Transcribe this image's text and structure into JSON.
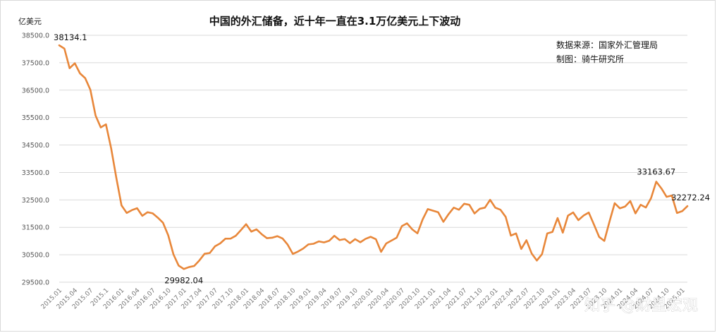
{
  "chart_data": {
    "type": "line",
    "title": "中国的外汇储备，近十年一直在3.1万亿美元上下波动",
    "ylabel": "亿美元",
    "xlabel": "",
    "source_lines": [
      "数据来源：国家外汇管理局",
      "制图：骑牛研究所"
    ],
    "watermark": "知乎 @财星宏观",
    "ylim": [
      29500,
      38500
    ],
    "yticks": [
      "29500.0",
      "30500.0",
      "31500.0",
      "32500.0",
      "33500.0",
      "34500.0",
      "35500.0",
      "36500.0",
      "37500.0",
      "38500.0"
    ],
    "ytick_values": [
      29500,
      30500,
      31500,
      32500,
      33500,
      34500,
      35500,
      36500,
      37500,
      38500
    ],
    "grid": true,
    "legend": "none",
    "line_color": "#e8873a",
    "xtick_labels": [
      "2015.01",
      "2015.04",
      "2015.07",
      "2015.1",
      "2016.01",
      "2016.04",
      "2016.07",
      "2016.10",
      "2017.01",
      "2017.04",
      "2017.07",
      "2017.10",
      "2018.01",
      "2018.04",
      "2018.07",
      "2018.10",
      "2019.01",
      "2019.04",
      "2019.07",
      "2019.10",
      "2020.01",
      "2020.04",
      "2020.07",
      "2020.10",
      "2021.01",
      "2021.04",
      "2021.07",
      "2021.10",
      "2022.01",
      "2022.04",
      "2022.07",
      "2022.10",
      "2023.01",
      "2023.04",
      "2023.07",
      "2023.10",
      "2024.01",
      "2024.04",
      "2024.07",
      "2024.10",
      "2025.01"
    ],
    "annotations": [
      {
        "index": 0,
        "label": "38134.1",
        "position": "above"
      },
      {
        "index": 24,
        "label": "29982.04",
        "position": "below"
      },
      {
        "index": 115,
        "label": "33163.67",
        "position": "above"
      },
      {
        "index": 121,
        "label": "32272.24",
        "position": "above"
      }
    ],
    "values": [
      38134,
      38013,
      37300,
      37481,
      37111,
      36938,
      36513,
      35574,
      35141,
      35255,
      34383,
      33303,
      32300,
      32025,
      32127,
      32197,
      31920,
      32052,
      32011,
      31850,
      31664,
      31207,
      30516,
      30105,
      29982,
      30051,
      30091,
      30295,
      30536,
      30564,
      30807,
      30915,
      31085,
      31088,
      31192,
      31399,
      31615,
      31345,
      31428,
      31249,
      31106,
      31121,
      31179,
      31097,
      30870,
      30531,
      30617,
      30727,
      30879,
      30902,
      30988,
      30950,
      31010,
      31192,
      31036,
      31072,
      30924,
      31070,
      30956,
      31079,
      31155,
      31067,
      30606,
      30915,
      31017,
      31123,
      31544,
      31646,
      31426,
      31280,
      31785,
      32165,
      32108,
      32050,
      31700,
      31981,
      32218,
      32141,
      32359,
      32320,
      32006,
      32176,
      32218,
      32502,
      32216,
      32140,
      31880,
      31198,
      31278,
      30713,
      31029,
      30549,
      30290,
      30524,
      31277,
      31332,
      31839,
      31305,
      31928,
      32043,
      31762,
      31929,
      32040,
      31601,
      31151,
      31005,
      31712,
      32380,
      32193,
      32258,
      32457,
      32008,
      32322,
      32222,
      32564,
      33163.67,
      32917,
      32611,
      32659,
      32024,
      32090,
      32272.24
    ]
  }
}
